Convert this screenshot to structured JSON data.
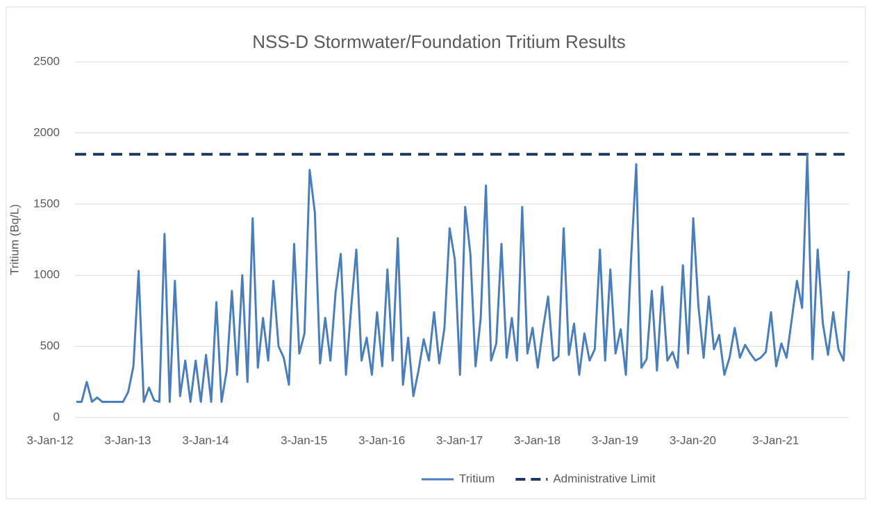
{
  "chart_data": {
    "type": "line",
    "title": "NSS-D Stormwater/Foundation Tritium Results",
    "y_label": "Tritium (Bq/L)",
    "categories": [
      "3-Jan-12",
      null,
      null,
      null,
      null,
      null,
      null,
      null,
      null,
      null,
      null,
      null,
      null,
      null,
      null,
      "3-Jan-13",
      null,
      null,
      null,
      null,
      null,
      null,
      null,
      null,
      null,
      null,
      null,
      null,
      null,
      null,
      "3-Jan-14",
      null,
      null,
      null,
      null,
      null,
      null,
      null,
      null,
      null,
      null,
      null,
      null,
      null,
      null,
      null,
      null,
      null,
      null,
      "3-Jan-15",
      null,
      null,
      null,
      null,
      null,
      null,
      null,
      null,
      null,
      null,
      null,
      null,
      null,
      null,
      "3-Jan-16",
      null,
      null,
      null,
      null,
      null,
      null,
      null,
      null,
      null,
      null,
      null,
      null,
      null,
      null,
      "3-Jan-17",
      null,
      null,
      null,
      null,
      null,
      null,
      null,
      null,
      null,
      null,
      null,
      null,
      null,
      null,
      "3-Jan-18",
      null,
      null,
      null,
      null,
      null,
      null,
      null,
      null,
      null,
      null,
      null,
      null,
      null,
      null,
      "3-Jan-19",
      null,
      null,
      null,
      null,
      null,
      null,
      null,
      null,
      null,
      null,
      null,
      null,
      null,
      null,
      "3-Jan-20",
      null,
      null,
      null,
      null,
      null,
      null,
      null,
      null,
      null,
      null,
      null,
      null,
      null,
      null,
      null,
      "3-Jan-21",
      null,
      null,
      null,
      null,
      null,
      null,
      null,
      null,
      null
    ],
    "series": [
      {
        "name": "Tritium",
        "color": "#4a7ebb",
        "values": [
          110,
          110,
          250,
          110,
          140,
          110,
          110,
          110,
          110,
          110,
          180,
          360,
          1030,
          110,
          210,
          120,
          110,
          1290,
          110,
          960,
          150,
          400,
          110,
          400,
          110,
          440,
          110,
          810,
          110,
          330,
          890,
          300,
          1000,
          250,
          1400,
          350,
          700,
          400,
          960,
          500,
          420,
          230,
          1220,
          450,
          590,
          1740,
          1440,
          380,
          700,
          400,
          880,
          1150,
          300,
          770,
          1180,
          400,
          560,
          300,
          740,
          360,
          1040,
          400,
          1260,
          230,
          560,
          150,
          330,
          550,
          400,
          740,
          380,
          630,
          1330,
          1110,
          300,
          1480,
          1150,
          360,
          700,
          1630,
          400,
          520,
          1220,
          420,
          700,
          400,
          1480,
          450,
          630,
          350,
          620,
          850,
          400,
          430,
          1330,
          440,
          660,
          300,
          590,
          400,
          480,
          1180,
          400,
          1040,
          450,
          620,
          300,
          1110,
          1780,
          350,
          410,
          890,
          330,
          920,
          400,
          460,
          350,
          1070,
          450,
          1400,
          780,
          420,
          850,
          480,
          580,
          300,
          420,
          630,
          420,
          510,
          450,
          400,
          420,
          460,
          740,
          360,
          520,
          420,
          690,
          960,
          770,
          1850,
          410,
          1180,
          660,
          440,
          740,
          480,
          400,
          1030
        ]
      }
    ],
    "reference_lines": [
      {
        "name": "Administrative Limit",
        "value": 1850,
        "color": "#1f3864",
        "dash": true
      }
    ],
    "ylim": [
      0,
      2500
    ],
    "yticks": [
      0,
      500,
      1000,
      1500,
      2000,
      2500
    ],
    "grid": true,
    "legend": "bottom"
  }
}
